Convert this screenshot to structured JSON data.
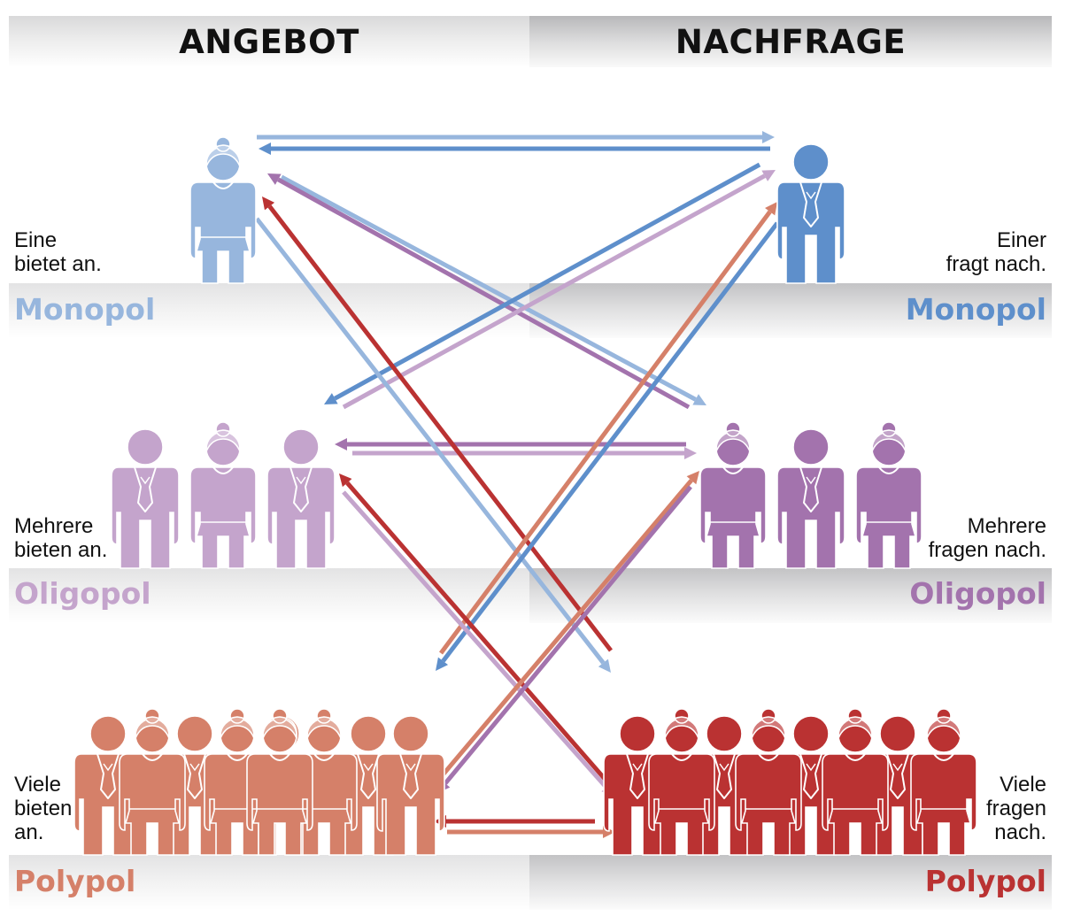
{
  "header": {
    "left": "ANGEBOT",
    "right": "NACHFRAGE"
  },
  "colors": {
    "monopol_angebot": "#97b6dd",
    "monopol_nachfrage": "#5e8fcb",
    "oligopol_angebot": "#c4a4cc",
    "oligopol_nachfrage": "#a373ad",
    "polypol_angebot": "#d58069",
    "polypol_nachfrage": "#ba3232"
  },
  "rows": [
    {
      "market_form_left": "Monopol",
      "market_form_right": "Monopol",
      "left_desc": [
        "Eine",
        "bietet an."
      ],
      "right_desc": [
        "Einer",
        "fragt nach."
      ]
    },
    {
      "market_form_left": "Oligopol",
      "market_form_right": "Oligopol",
      "left_desc": [
        "Mehrere",
        "bieten an."
      ],
      "right_desc": [
        "Mehrere",
        "fragen nach."
      ]
    },
    {
      "market_form_left": "Polypol",
      "market_form_right": "Polypol",
      "left_desc": [
        "Viele",
        "bieten",
        "an."
      ],
      "right_desc": [
        "Viele",
        "fragen",
        "nach."
      ]
    }
  ],
  "icons": {
    "woman": "woman-figure-icon",
    "man": "man-figure-icon",
    "arrow": "arrow-icon"
  }
}
